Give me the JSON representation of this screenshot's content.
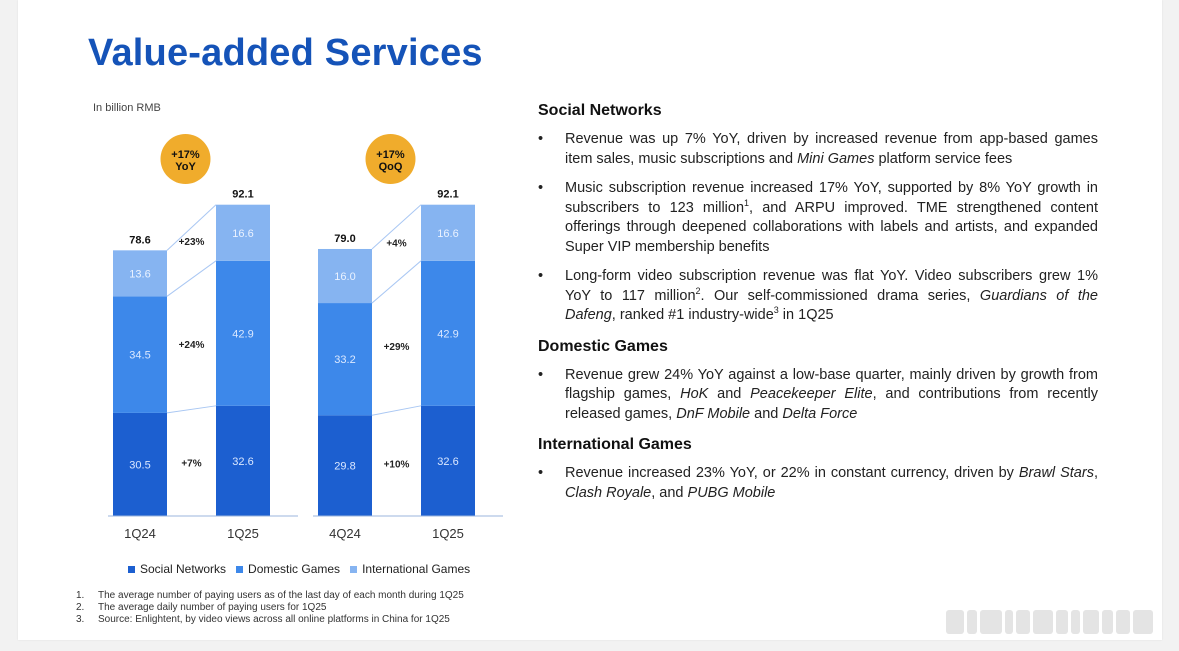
{
  "slide_title": "Value-added Services",
  "unit_label": "In billion RMB",
  "colors": {
    "title": "#1553b8",
    "social": "#1c5fd0",
    "domestic": "#3d88ea",
    "international": "#86b4f1",
    "badge": "#f0ac2c"
  },
  "chart_data": {
    "type": "bar",
    "stacked": true,
    "groups": [
      {
        "badge": [
          "+17%",
          "YoY"
        ],
        "categories": [
          "1Q24",
          "1Q25"
        ],
        "totals": [
          "78.6",
          "92.1"
        ],
        "series": [
          {
            "name": "Social Networks",
            "values": [
              30.5,
              32.6
            ]
          },
          {
            "name": "Domestic Games",
            "values": [
              34.5,
              42.9
            ]
          },
          {
            "name": "International Games",
            "values": [
              13.6,
              16.6
            ]
          }
        ],
        "growth": [
          "+7%",
          "+24%",
          "+23%"
        ]
      },
      {
        "badge": [
          "+17%",
          "QoQ"
        ],
        "categories": [
          "4Q24",
          "1Q25"
        ],
        "totals": [
          "79.0",
          "92.1"
        ],
        "series": [
          {
            "name": "Social Networks",
            "values": [
              29.8,
              32.6
            ]
          },
          {
            "name": "Domestic Games",
            "values": [
              33.2,
              42.9
            ]
          },
          {
            "name": "International Games",
            "values": [
              16.0,
              16.6
            ]
          }
        ],
        "growth": [
          "+10%",
          "+29%",
          "+4%"
        ]
      }
    ],
    "legend": [
      "Social Networks",
      "Domestic Games",
      "International Games"
    ],
    "legend_position": "bottom"
  },
  "footnotes": [
    {
      "num": "1.",
      "text": "The average number of paying users as of the last day of each month during 1Q25"
    },
    {
      "num": "2.",
      "text": "The average daily number of paying users for 1Q25"
    },
    {
      "num": "3.",
      "text": "Source: Enlightent, by video views across all online platforms in China for 1Q25"
    }
  ],
  "bullet_glyph": "•",
  "sections": [
    {
      "heading": "Social Networks",
      "bullets": [
        "Revenue was up 7% YoY, driven by increased revenue from app-based games item sales, music subscriptions and <i>Mini Games</i> platform service fees",
        "Music subscription revenue increased 17% YoY, supported by 8% YoY growth in subscribers to 123 million<sup>1</sup>, and ARPU improved. TME strengthened content offerings through deepened collaborations with labels and artists, and expanded Super VIP membership benefits",
        "Long-form video subscription revenue was flat YoY. Video subscribers grew 1% YoY to 117 million<sup>2</sup>. Our self-commissioned drama series, <i>Guardians of the Dafeng</i>, ranked #1 industry-wide<sup>3</sup> in 1Q25"
      ]
    },
    {
      "heading": "Domestic Games",
      "bullets": [
        "Revenue grew 24% YoY against a low-base quarter, mainly driven by growth from flagship games, <i>HoK</i> and <i>Peacekeeper Elite</i>, and contributions from recently released games, <i>DnF Mobile</i> and <i>Delta Force</i>"
      ]
    },
    {
      "heading": "International Games",
      "bullets": [
        "Revenue increased 23% YoY, or 22% in constant currency, driven by <i>Brawl Stars</i>, <i>Clash Royale</i>, and <i>PUBG Mobile</i>"
      ]
    }
  ]
}
